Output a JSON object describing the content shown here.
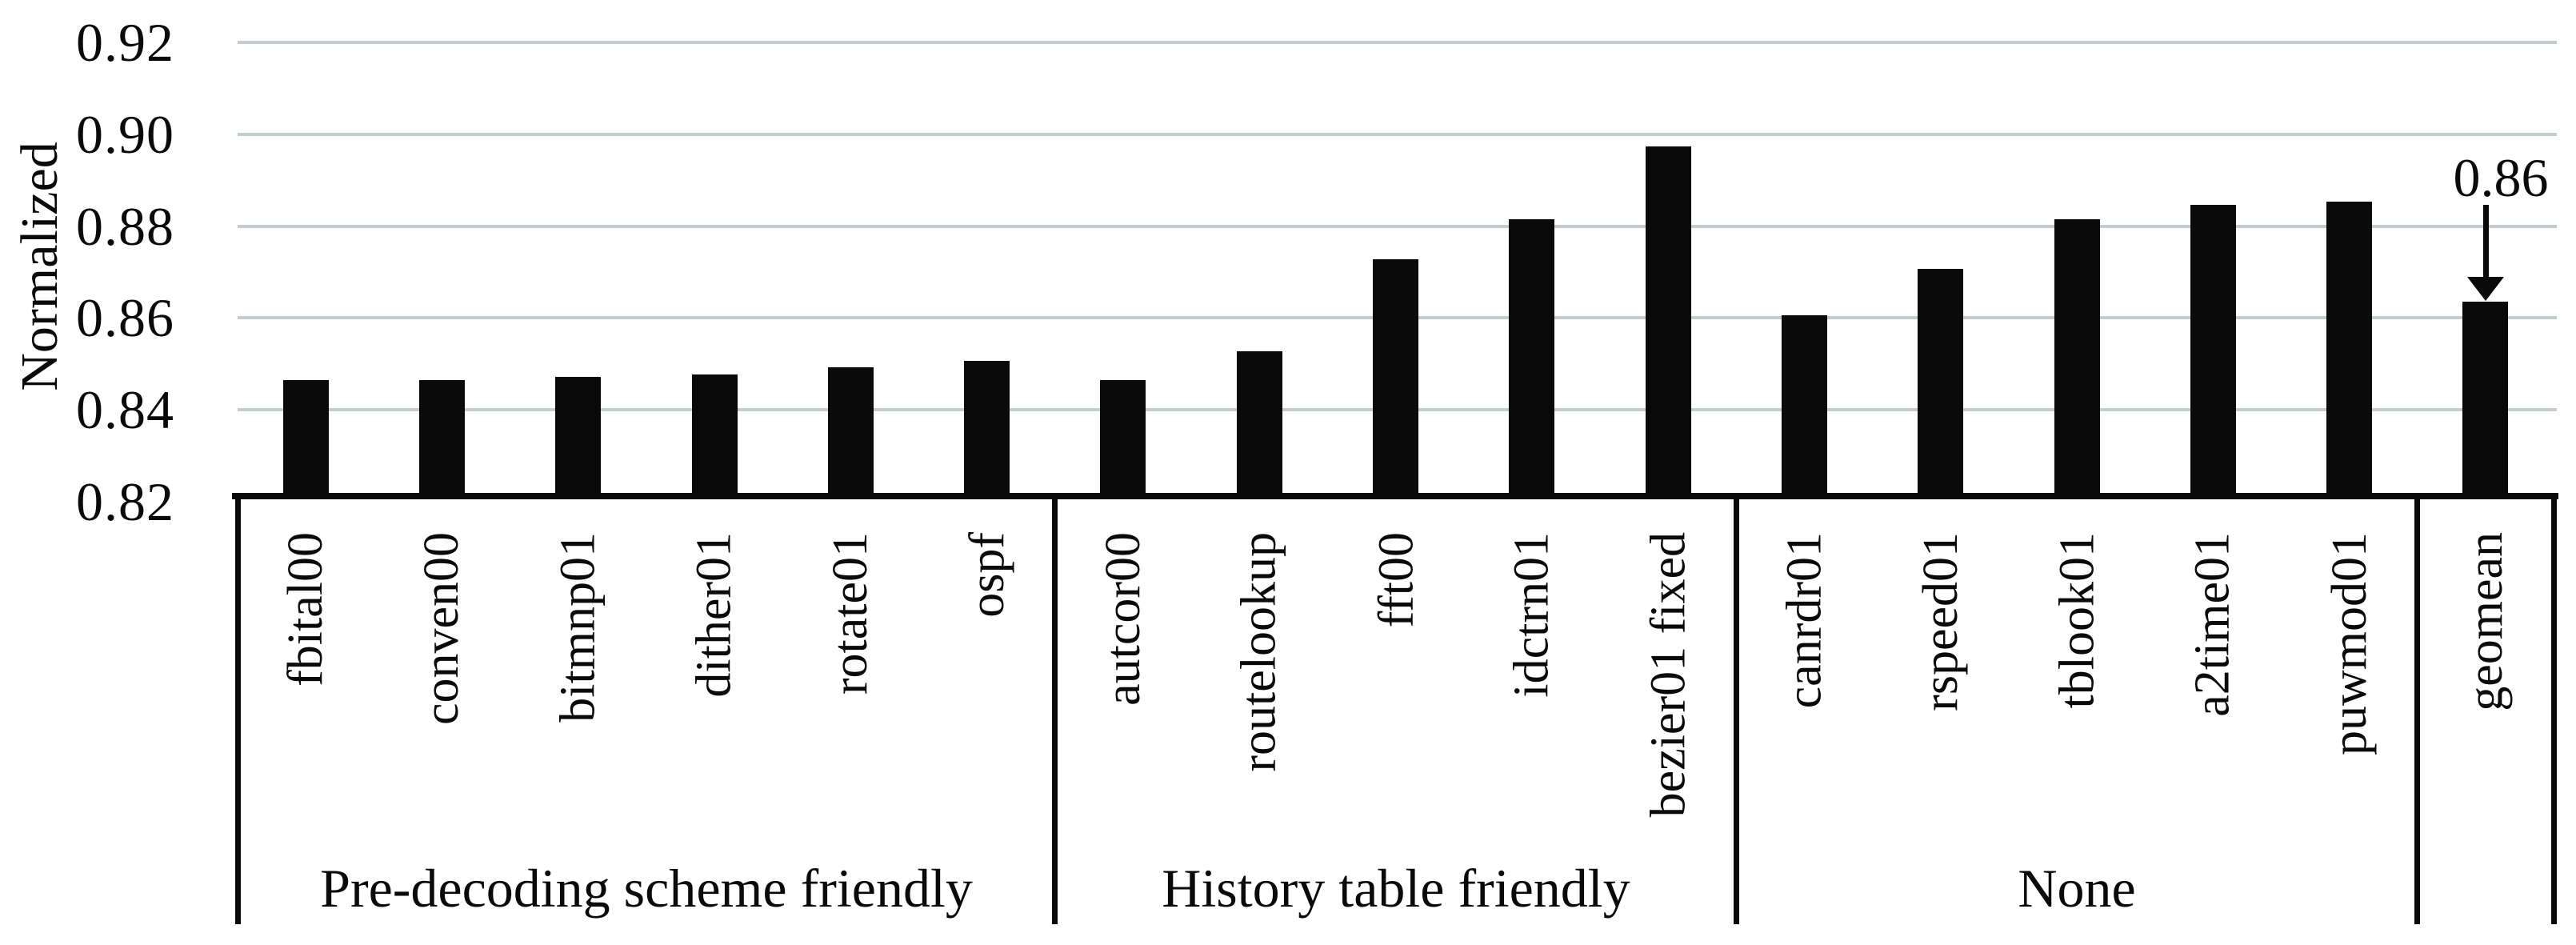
{
  "chart_data": {
    "type": "bar",
    "title": "",
    "ylabel": "Normalized",
    "xlabel": "",
    "ylim": [
      0.82,
      0.92
    ],
    "ytick_labels": [
      "0.92",
      "0.90",
      "0.88",
      "0.86",
      "0.84",
      "0.82"
    ],
    "grid": "horizontal-gridlines-on",
    "legend_position": "none",
    "bar_color": "#0a0a0a",
    "gridline_color": "#c3cccd",
    "groups": [
      {
        "label": "Pre-decoding scheme friendly",
        "categories": [
          "fbital00",
          "conven00",
          "bitmnp01",
          "dither01",
          "rotate01",
          "ospf"
        ],
        "values": [
          0.8465,
          0.8465,
          0.8472,
          0.8476,
          0.8492,
          0.8506
        ]
      },
      {
        "label": "History table friendly",
        "categories": [
          "autcor00",
          "routelookup",
          "fft00",
          "idctrn01",
          "bezier01 fixed"
        ],
        "values": [
          0.8465,
          0.8528,
          0.8728,
          0.8814,
          0.8974
        ]
      },
      {
        "label": "None",
        "categories": [
          "canrdr01",
          "rspeed01",
          "tblook01",
          "a2time01",
          "puwmod01"
        ],
        "values": [
          0.8606,
          0.8707,
          0.8814,
          0.8846,
          0.8854
        ]
      },
      {
        "label": "",
        "categories": [
          "geomean"
        ],
        "values": [
          0.8636
        ]
      }
    ],
    "annotation": {
      "text": "0.86",
      "points_to": "geomean"
    }
  }
}
